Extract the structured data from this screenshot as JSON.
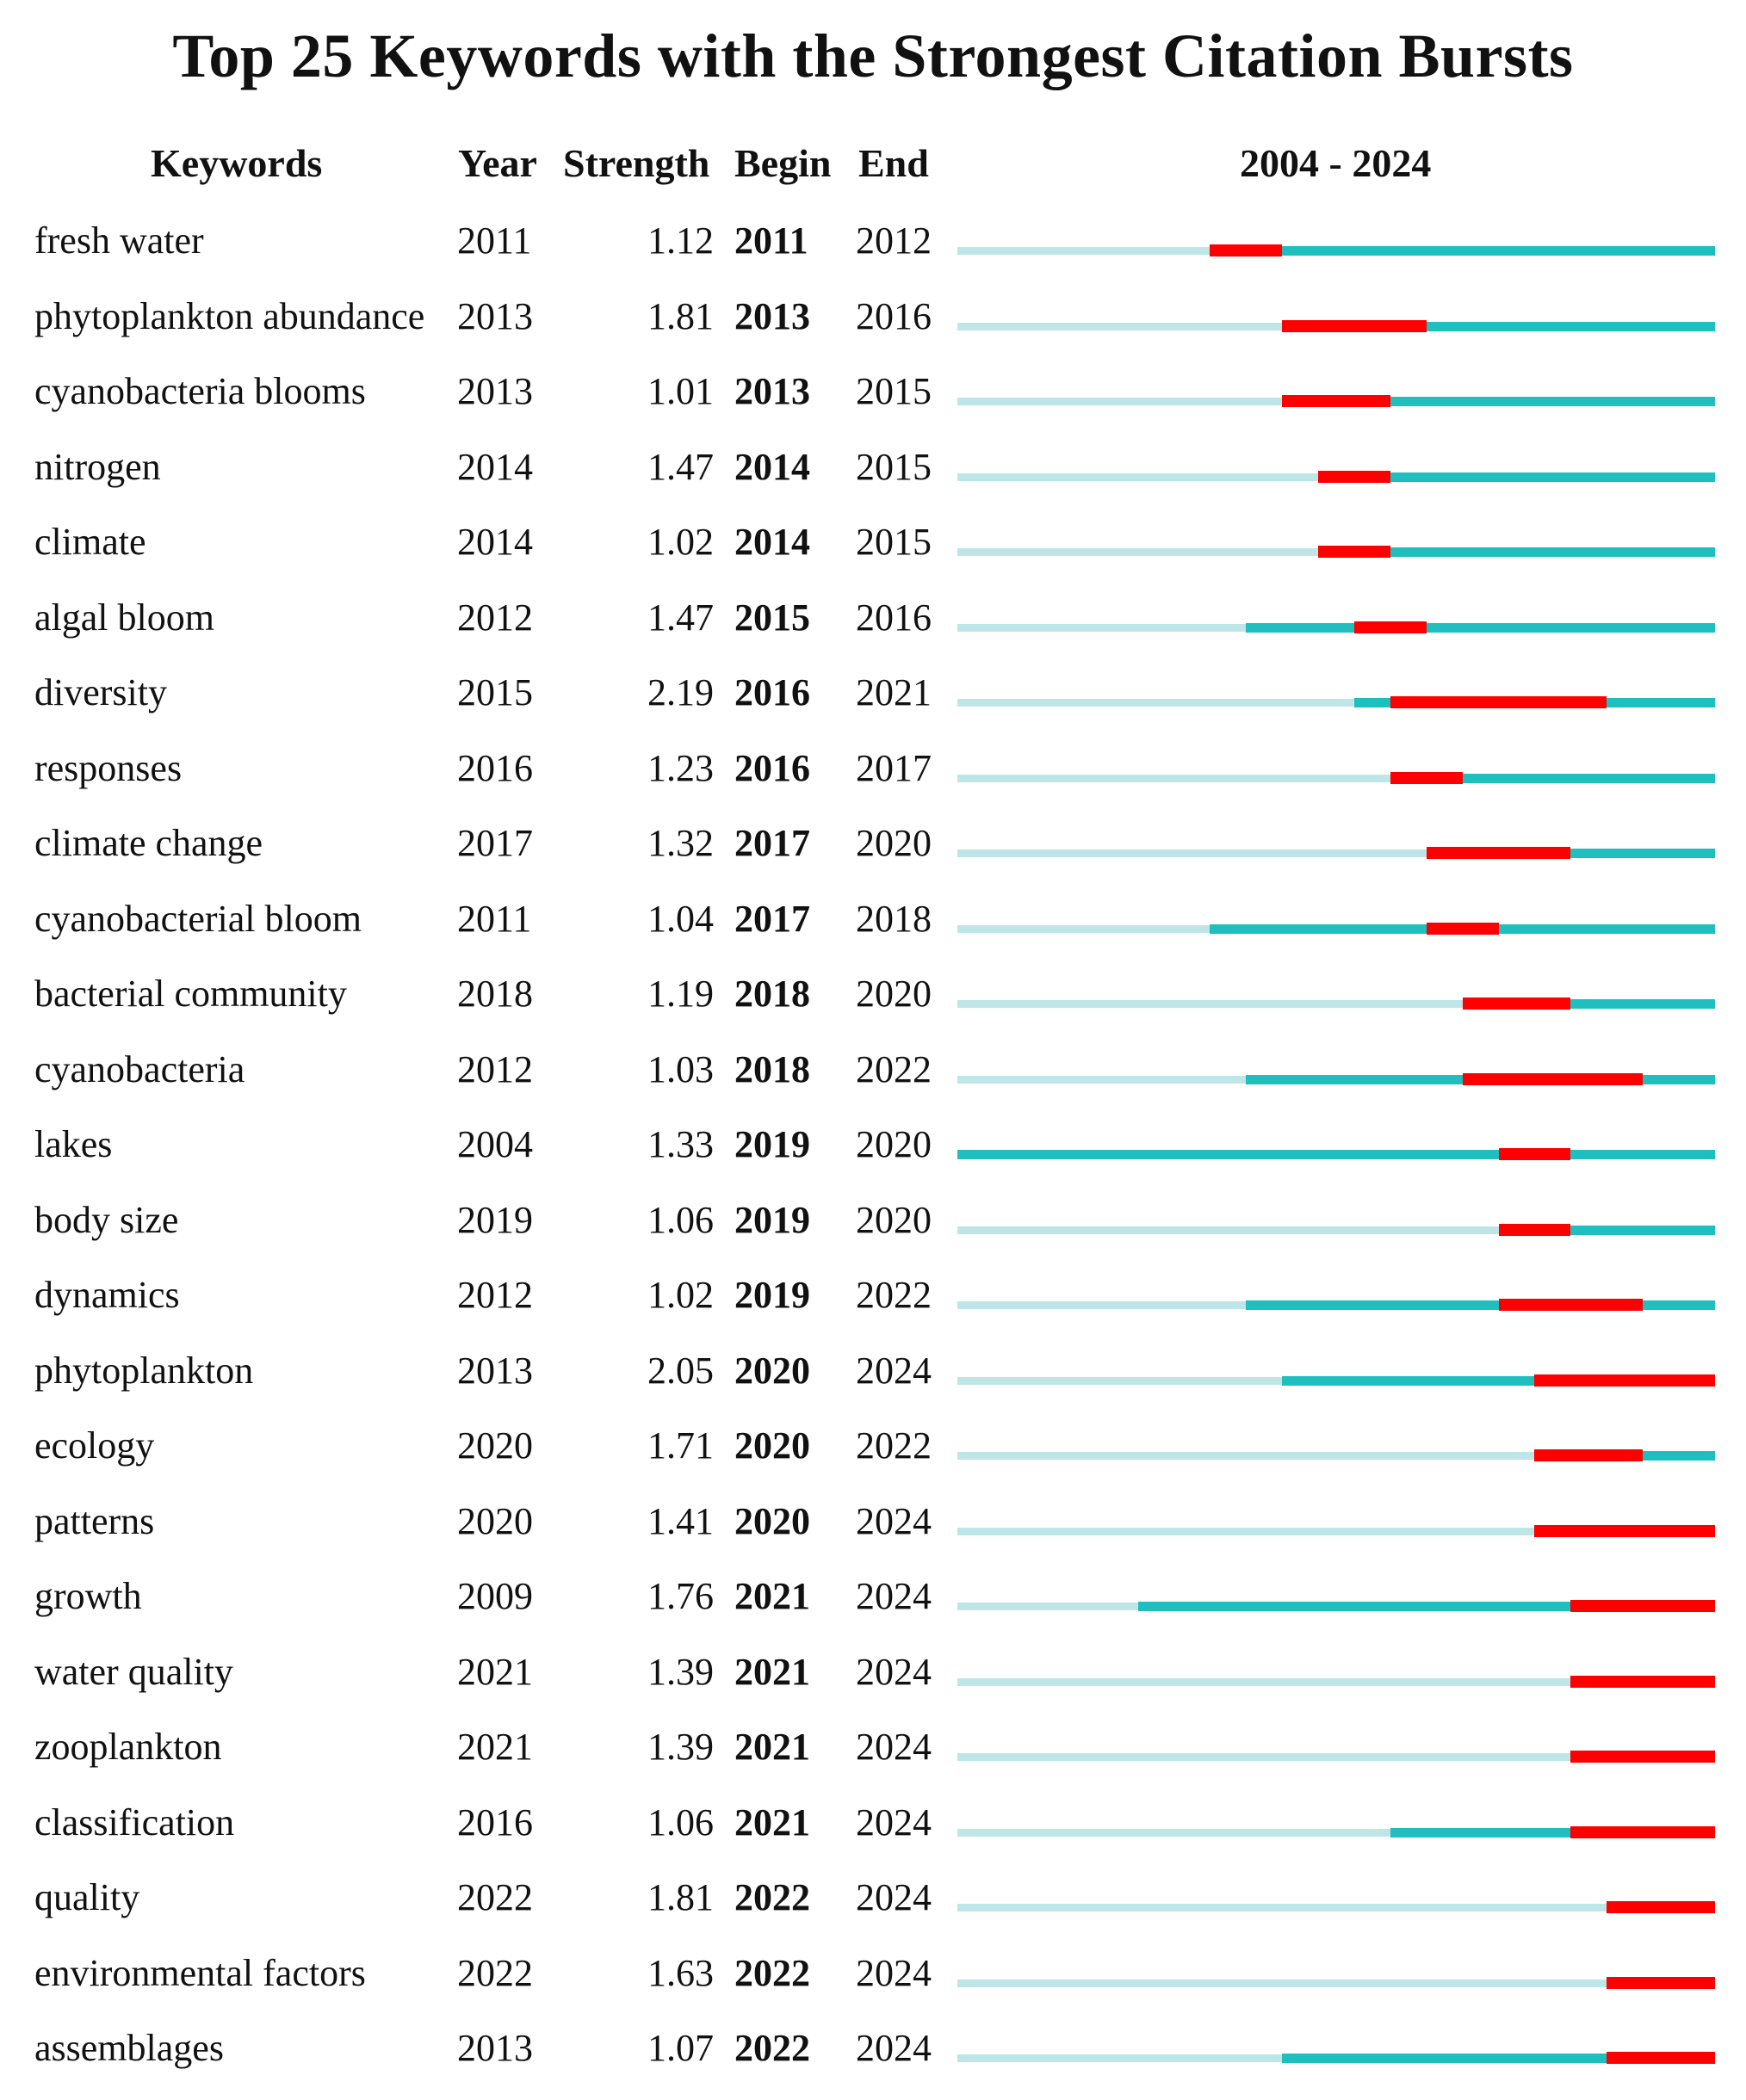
{
  "title": "Top 25 Keywords with the Strongest Citation Bursts",
  "headers": {
    "keywords": "Keywords",
    "year": "Year",
    "strength": "Strength",
    "begin": "Begin",
    "end": "End",
    "range": "2004 - 2024"
  },
  "colors": {
    "before": "#bfe6e6",
    "active": "#1fbfbf",
    "burst": "#ff0000"
  },
  "chart_data": {
    "type": "table",
    "title": "Top 25 Keywords with the Strongest Citation Bursts",
    "range_start": 2004,
    "range_end": 2024,
    "columns": [
      "Keywords",
      "Year",
      "Strength",
      "Begin",
      "End"
    ],
    "rows": [
      {
        "keyword": "fresh water",
        "year": "2011",
        "strength": "1.12",
        "begin": "2011",
        "end": "2012"
      },
      {
        "keyword": "phytoplankton abundance",
        "year": "2013",
        "strength": "1.81",
        "begin": "2013",
        "end": "2016"
      },
      {
        "keyword": "cyanobacteria blooms",
        "year": "2013",
        "strength": "1.01",
        "begin": "2013",
        "end": "2015"
      },
      {
        "keyword": "nitrogen",
        "year": "2014",
        "strength": "1.47",
        "begin": "2014",
        "end": "2015"
      },
      {
        "keyword": "climate",
        "year": "2014",
        "strength": "1.02",
        "begin": "2014",
        "end": "2015"
      },
      {
        "keyword": "algal bloom",
        "year": "2012",
        "strength": "1.47",
        "begin": "2015",
        "end": "2016"
      },
      {
        "keyword": "diversity",
        "year": "2015",
        "strength": "2.19",
        "begin": "2016",
        "end": "2021"
      },
      {
        "keyword": "responses",
        "year": "2016",
        "strength": "1.23",
        "begin": "2016",
        "end": "2017"
      },
      {
        "keyword": "climate change",
        "year": "2017",
        "strength": "1.32",
        "begin": "2017",
        "end": "2020"
      },
      {
        "keyword": "cyanobacterial bloom",
        "year": "2011",
        "strength": "1.04",
        "begin": "2017",
        "end": "2018"
      },
      {
        "keyword": "bacterial community",
        "year": "2018",
        "strength": "1.19",
        "begin": "2018",
        "end": "2020"
      },
      {
        "keyword": "cyanobacteria",
        "year": "2012",
        "strength": "1.03",
        "begin": "2018",
        "end": "2022"
      },
      {
        "keyword": "lakes",
        "year": "2004",
        "strength": "1.33",
        "begin": "2019",
        "end": "2020"
      },
      {
        "keyword": "body size",
        "year": "2019",
        "strength": "1.06",
        "begin": "2019",
        "end": "2020"
      },
      {
        "keyword": "dynamics",
        "year": "2012",
        "strength": "1.02",
        "begin": "2019",
        "end": "2022"
      },
      {
        "keyword": "phytoplankton",
        "year": "2013",
        "strength": "2.05",
        "begin": "2020",
        "end": "2024"
      },
      {
        "keyword": "ecology",
        "year": "2020",
        "strength": "1.71",
        "begin": "2020",
        "end": "2022"
      },
      {
        "keyword": "patterns",
        "year": "2020",
        "strength": "1.41",
        "begin": "2020",
        "end": "2024"
      },
      {
        "keyword": "growth",
        "year": "2009",
        "strength": "1.76",
        "begin": "2021",
        "end": "2024"
      },
      {
        "keyword": "water quality",
        "year": "2021",
        "strength": "1.39",
        "begin": "2021",
        "end": "2024"
      },
      {
        "keyword": "zooplankton",
        "year": "2021",
        "strength": "1.39",
        "begin": "2021",
        "end": "2024"
      },
      {
        "keyword": "classification",
        "year": "2016",
        "strength": "1.06",
        "begin": "2021",
        "end": "2024"
      },
      {
        "keyword": "quality",
        "year": "2022",
        "strength": "1.81",
        "begin": "2022",
        "end": "2024"
      },
      {
        "keyword": "environmental factors",
        "year": "2022",
        "strength": "1.63",
        "begin": "2022",
        "end": "2024"
      },
      {
        "keyword": "assemblages",
        "year": "2013",
        "strength": "1.07",
        "begin": "2022",
        "end": "2024"
      }
    ]
  }
}
